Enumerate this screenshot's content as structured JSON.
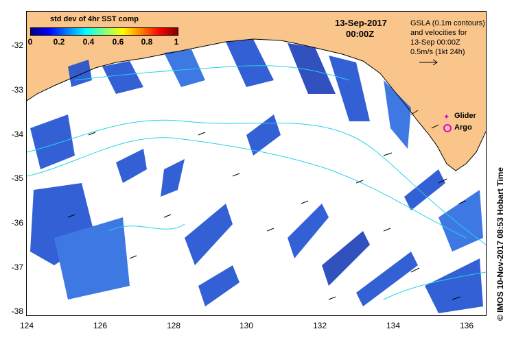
{
  "map": {
    "date": "13-Sep-2017",
    "time": "00:00Z",
    "colorbar": {
      "title": "std dev of 4hr SST comp",
      "ticks": [
        "0",
        "0.2",
        "0.4",
        "0.6",
        "0.8",
        "1"
      ],
      "colors": [
        "#00008f",
        "#0000ff",
        "#0080ff",
        "#00ffff",
        "#80ff80",
        "#ffff00",
        "#ff8000",
        "#ff0000",
        "#800000"
      ]
    },
    "legend": {
      "line1": "GSLA (0.1m contours)",
      "line2": "and velocities for",
      "line3": "13-Sep 00:00Z",
      "line4": "0.5m/s (1kt 24h)",
      "glider": "Glider",
      "argo": "Argo"
    },
    "y_ticks": [
      "-32",
      "-33",
      "-34",
      "-35",
      "-36",
      "-37",
      "-38"
    ],
    "x_ticks": [
      "124",
      "126",
      "128",
      "130",
      "132",
      "134",
      "136"
    ],
    "credit": "© IMOS 10-Nov-2017 08:53 Hobart Time",
    "colors": {
      "land": "#f9c58b",
      "ocean": "#ffffff",
      "contour": "#22d3e8",
      "marker": "#e000e0"
    }
  }
}
